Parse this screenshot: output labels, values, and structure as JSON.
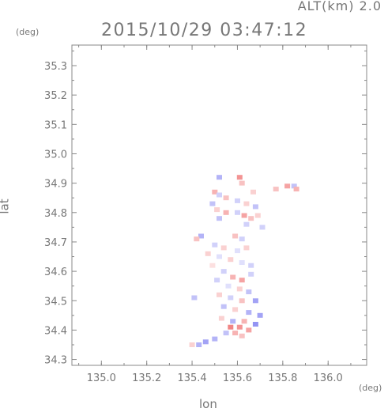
{
  "header": {
    "altitude_label": "ALT(km) 2.0",
    "timestamp": "2015/10/29 03:47:12"
  },
  "chart_data": {
    "type": "heatmap",
    "xlabel": "lon",
    "ylabel": "lat",
    "x_unit": "(deg)",
    "y_unit": "(deg)",
    "xlim": [
      134.87,
      136.17
    ],
    "ylim": [
      34.28,
      35.37
    ],
    "x_ticks": [
      "135.0",
      "135.2",
      "135.4",
      "135.6",
      "135.8",
      "136.0"
    ],
    "x_tick_values": [
      135.0,
      135.2,
      135.4,
      135.6,
      135.8,
      136.0
    ],
    "y_ticks": [
      "34.3",
      "34.4",
      "34.5",
      "34.6",
      "34.7",
      "34.8",
      "34.9",
      "35.0",
      "35.1",
      "35.2",
      "35.3"
    ],
    "y_tick_values": [
      34.3,
      34.4,
      34.5,
      34.6,
      34.7,
      34.8,
      34.9,
      35.0,
      35.1,
      35.2,
      35.3
    ],
    "grid": false,
    "colors": {
      "positive": "#ee6666",
      "negative": "#6666ee",
      "axis": "#888888"
    },
    "cells": [
      {
        "lon": 135.52,
        "lat": 34.92,
        "v": -0.5
      },
      {
        "lon": 135.61,
        "lat": 34.92,
        "v": 0.7
      },
      {
        "lon": 135.62,
        "lat": 34.9,
        "v": 0.4
      },
      {
        "lon": 135.82,
        "lat": 34.89,
        "v": 0.6
      },
      {
        "lon": 135.85,
        "lat": 34.89,
        "v": -0.4
      },
      {
        "lon": 135.86,
        "lat": 34.88,
        "v": 0.5
      },
      {
        "lon": 135.77,
        "lat": 34.88,
        "v": 0.4
      },
      {
        "lon": 135.67,
        "lat": 34.87,
        "v": 0.3
      },
      {
        "lon": 135.5,
        "lat": 34.87,
        "v": 0.5
      },
      {
        "lon": 135.52,
        "lat": 34.86,
        "v": -0.3
      },
      {
        "lon": 135.55,
        "lat": 34.85,
        "v": 0.4
      },
      {
        "lon": 135.6,
        "lat": 34.84,
        "v": -0.3
      },
      {
        "lon": 135.49,
        "lat": 34.83,
        "v": -0.4
      },
      {
        "lon": 135.64,
        "lat": 34.83,
        "v": 0.3
      },
      {
        "lon": 135.68,
        "lat": 34.82,
        "v": -0.4
      },
      {
        "lon": 135.51,
        "lat": 34.81,
        "v": 0.3
      },
      {
        "lon": 135.55,
        "lat": 34.8,
        "v": 0.5
      },
      {
        "lon": 135.6,
        "lat": 34.8,
        "v": -0.3
      },
      {
        "lon": 135.63,
        "lat": 34.79,
        "v": 0.6
      },
      {
        "lon": 135.66,
        "lat": 34.78,
        "v": 0.4
      },
      {
        "lon": 135.69,
        "lat": 34.79,
        "v": 0.3
      },
      {
        "lon": 135.52,
        "lat": 34.78,
        "v": -0.4
      },
      {
        "lon": 135.64,
        "lat": 34.76,
        "v": -0.3
      },
      {
        "lon": 135.71,
        "lat": 34.75,
        "v": -0.3
      },
      {
        "lon": 135.44,
        "lat": 34.72,
        "v": -0.5
      },
      {
        "lon": 135.42,
        "lat": 34.71,
        "v": 0.4
      },
      {
        "lon": 135.59,
        "lat": 34.72,
        "v": 0.4
      },
      {
        "lon": 135.62,
        "lat": 34.71,
        "v": -0.3
      },
      {
        "lon": 135.5,
        "lat": 34.69,
        "v": -0.3
      },
      {
        "lon": 135.54,
        "lat": 34.68,
        "v": 0.3
      },
      {
        "lon": 135.6,
        "lat": 34.67,
        "v": -0.2
      },
      {
        "lon": 135.64,
        "lat": 34.68,
        "v": 0.3
      },
      {
        "lon": 135.47,
        "lat": 34.66,
        "v": 0.3
      },
      {
        "lon": 135.52,
        "lat": 34.65,
        "v": -0.2
      },
      {
        "lon": 135.57,
        "lat": 34.64,
        "v": 0.3
      },
      {
        "lon": 135.62,
        "lat": 34.63,
        "v": -0.2
      },
      {
        "lon": 135.66,
        "lat": 34.62,
        "v": -0.3
      },
      {
        "lon": 135.49,
        "lat": 34.62,
        "v": 0.2
      },
      {
        "lon": 135.54,
        "lat": 34.6,
        "v": -0.3
      },
      {
        "lon": 135.58,
        "lat": 34.58,
        "v": 0.5
      },
      {
        "lon": 135.62,
        "lat": 34.57,
        "v": 0.6
      },
      {
        "lon": 135.66,
        "lat": 34.59,
        "v": -0.3
      },
      {
        "lon": 135.51,
        "lat": 34.57,
        "v": -0.3
      },
      {
        "lon": 135.56,
        "lat": 34.55,
        "v": -0.2
      },
      {
        "lon": 135.61,
        "lat": 34.54,
        "v": 0.3
      },
      {
        "lon": 135.65,
        "lat": 34.53,
        "v": -0.4
      },
      {
        "lon": 135.52,
        "lat": 34.52,
        "v": 0.3
      },
      {
        "lon": 135.57,
        "lat": 34.51,
        "v": -0.3
      },
      {
        "lon": 135.62,
        "lat": 34.5,
        "v": 0.4
      },
      {
        "lon": 135.68,
        "lat": 34.5,
        "v": -0.6
      },
      {
        "lon": 135.41,
        "lat": 34.51,
        "v": -0.4
      },
      {
        "lon": 135.54,
        "lat": 34.48,
        "v": -0.4
      },
      {
        "lon": 135.59,
        "lat": 34.47,
        "v": 0.3
      },
      {
        "lon": 135.65,
        "lat": 34.46,
        "v": -0.5
      },
      {
        "lon": 135.7,
        "lat": 34.45,
        "v": -0.6
      },
      {
        "lon": 135.53,
        "lat": 34.44,
        "v": 0.3
      },
      {
        "lon": 135.58,
        "lat": 34.43,
        "v": -0.5
      },
      {
        "lon": 135.63,
        "lat": 34.43,
        "v": 0.5
      },
      {
        "lon": 135.68,
        "lat": 34.42,
        "v": -0.7
      },
      {
        "lon": 135.57,
        "lat": 34.41,
        "v": 0.8
      },
      {
        "lon": 135.61,
        "lat": 34.41,
        "v": 0.7
      },
      {
        "lon": 135.65,
        "lat": 34.4,
        "v": 0.6
      },
      {
        "lon": 135.55,
        "lat": 34.39,
        "v": -0.4
      },
      {
        "lon": 135.59,
        "lat": 34.39,
        "v": 0.5
      },
      {
        "lon": 135.62,
        "lat": 34.38,
        "v": 0.4
      },
      {
        "lon": 135.5,
        "lat": 34.37,
        "v": -0.5
      },
      {
        "lon": 135.46,
        "lat": 34.36,
        "v": -0.6
      },
      {
        "lon": 135.43,
        "lat": 34.35,
        "v": -0.5
      },
      {
        "lon": 135.4,
        "lat": 34.35,
        "v": 0.3
      }
    ]
  }
}
